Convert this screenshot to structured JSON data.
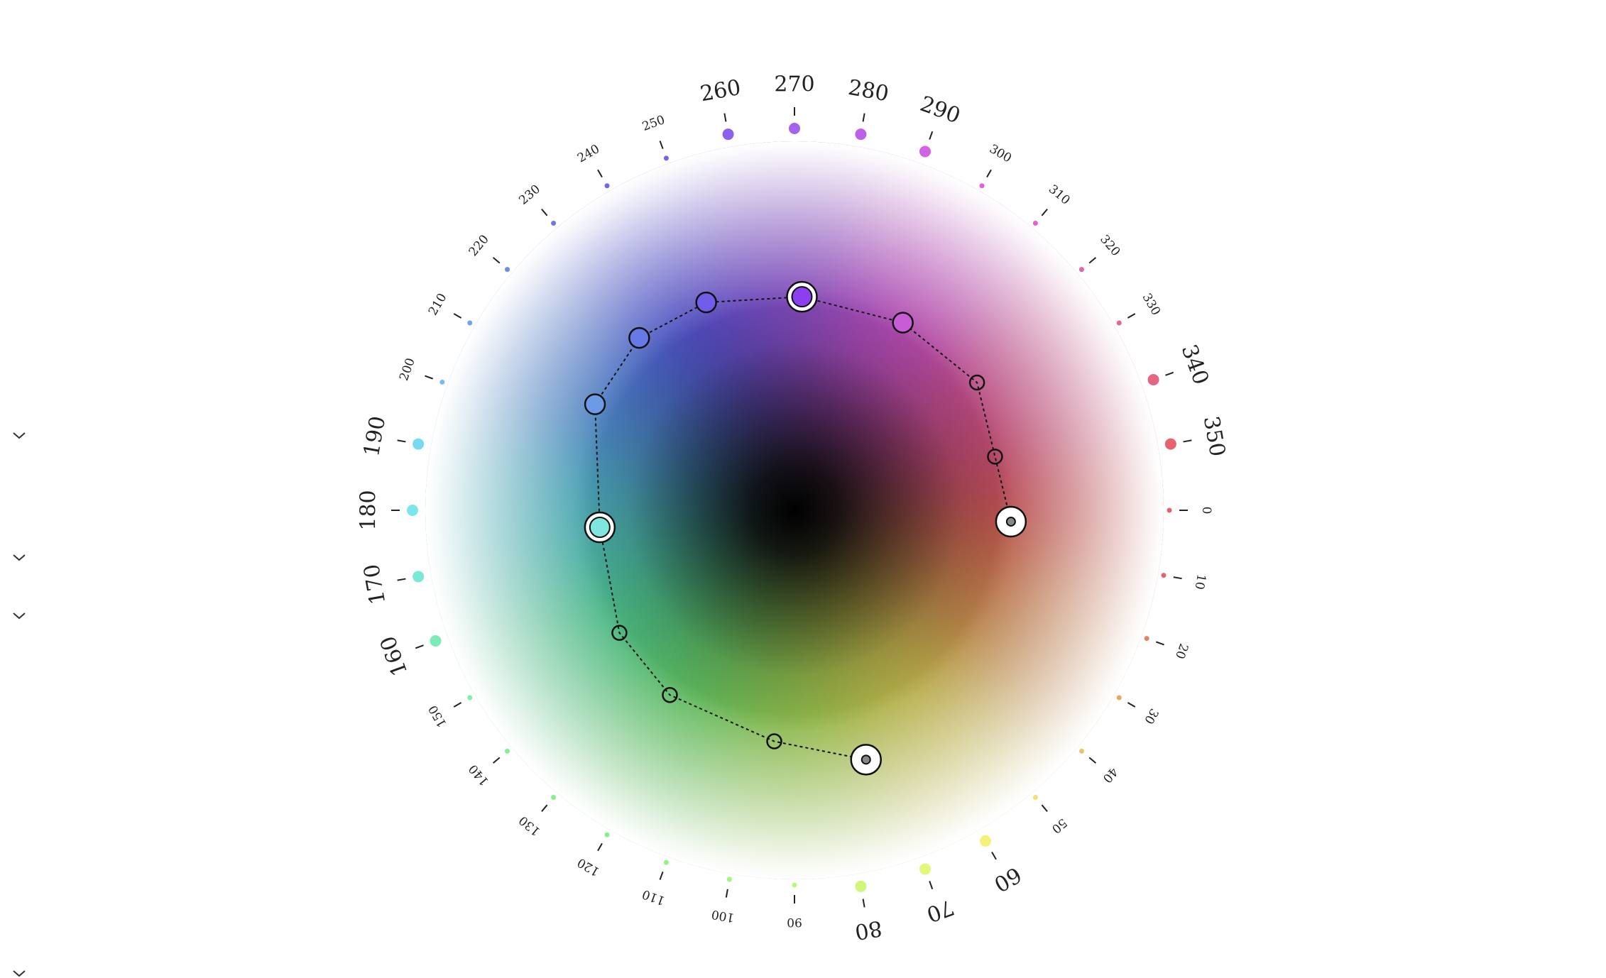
{
  "wheel": {
    "hue_ticks": [
      {
        "hue": 0,
        "label": "0",
        "color": "#e4606e",
        "major": false
      },
      {
        "hue": 10,
        "label": "10",
        "color": "#e5646a",
        "major": false
      },
      {
        "hue": 20,
        "label": "20",
        "color": "#e2855d",
        "major": false
      },
      {
        "hue": 30,
        "label": "30",
        "color": "#e9a862",
        "major": false
      },
      {
        "hue": 40,
        "label": "40",
        "color": "#eec268",
        "major": false
      },
      {
        "hue": 50,
        "label": "50",
        "color": "#f2e070",
        "major": false
      },
      {
        "hue": 60,
        "label": "60",
        "color": "#f4f27a",
        "major": true
      },
      {
        "hue": 70,
        "label": "70",
        "color": "#e3f77a",
        "major": true
      },
      {
        "hue": 80,
        "label": "80",
        "color": "#cff77a",
        "major": true
      },
      {
        "hue": 90,
        "label": "90",
        "color": "#b8f67c",
        "major": false
      },
      {
        "hue": 100,
        "label": "100",
        "color": "#a4f47e",
        "major": false
      },
      {
        "hue": 110,
        "label": "110",
        "color": "#96f282",
        "major": false
      },
      {
        "hue": 120,
        "label": "120",
        "color": "#8bf084",
        "major": false
      },
      {
        "hue": 130,
        "label": "130",
        "color": "#85ef8a",
        "major": false
      },
      {
        "hue": 140,
        "label": "140",
        "color": "#82ee95",
        "major": false
      },
      {
        "hue": 150,
        "label": "150",
        "color": "#80eea3",
        "major": false
      },
      {
        "hue": 160,
        "label": "160",
        "color": "#7debb8",
        "major": true
      },
      {
        "hue": 170,
        "label": "170",
        "color": "#7ae9d3",
        "major": true
      },
      {
        "hue": 180,
        "label": "180",
        "color": "#7ae8ea",
        "major": true
      },
      {
        "hue": 190,
        "label": "190",
        "color": "#7ad9f2",
        "major": true
      },
      {
        "hue": 200,
        "label": "200",
        "color": "#76bdee",
        "major": false
      },
      {
        "hue": 210,
        "label": "210",
        "color": "#72a2ea",
        "major": false
      },
      {
        "hue": 220,
        "label": "220",
        "color": "#6f8ce8",
        "major": false
      },
      {
        "hue": 230,
        "label": "230",
        "color": "#6f77e6",
        "major": false
      },
      {
        "hue": 240,
        "label": "240",
        "color": "#7168e6",
        "major": false
      },
      {
        "hue": 250,
        "label": "250",
        "color": "#7860e8",
        "major": false
      },
      {
        "hue": 260,
        "label": "260",
        "color": "#8b62ea",
        "major": true
      },
      {
        "hue": 270,
        "label": "270",
        "color": "#a463ec",
        "major": true
      },
      {
        "hue": 280,
        "label": "280",
        "color": "#bc62ea",
        "major": true
      },
      {
        "hue": 290,
        "label": "290",
        "color": "#d462e6",
        "major": true
      },
      {
        "hue": 300,
        "label": "300",
        "color": "#e062d6",
        "major": false
      },
      {
        "hue": 310,
        "label": "310",
        "color": "#e462c2",
        "major": false
      },
      {
        "hue": 320,
        "label": "320",
        "color": "#e662ad",
        "major": false
      },
      {
        "hue": 330,
        "label": "330",
        "color": "#e6639a",
        "major": false
      },
      {
        "hue": 340,
        "label": "340",
        "color": "#e66584",
        "major": true
      },
      {
        "hue": 350,
        "label": "350",
        "color": "#e6646f",
        "major": true
      }
    ],
    "palette_points": [
      {
        "hue": 3,
        "chroma": 0.71,
        "color": "#ffffff",
        "kind": "anchor"
      },
      {
        "hue": 345,
        "chroma": 0.68,
        "color": "#ffffff",
        "kind": "step"
      },
      {
        "hue": 325,
        "chroma": 0.73,
        "color": "#ffffff",
        "kind": "step"
      },
      {
        "hue": 300,
        "chroma": 0.71,
        "color": "#c85cd6",
        "kind": "swatch"
      },
      {
        "hue": 272,
        "chroma": 0.7,
        "color": "#8b3ff0",
        "kind": "selected"
      },
      {
        "hue": 247,
        "chroma": 0.74,
        "color": "#6f5ce8",
        "kind": "swatch"
      },
      {
        "hue": 228,
        "chroma": 0.76,
        "color": "#6679e6",
        "kind": "swatch"
      },
      {
        "hue": 208,
        "chroma": 0.74,
        "color": "#6c9ae8",
        "kind": "swatch"
      },
      {
        "hue": 175,
        "chroma": 0.64,
        "color": "#7ee6de",
        "kind": "selected"
      },
      {
        "hue": 145,
        "chroma": 0.7,
        "color": "#ffffff",
        "kind": "step"
      },
      {
        "hue": 124,
        "chroma": 0.73,
        "color": "#ffffff",
        "kind": "step"
      },
      {
        "hue": 95,
        "chroma": 0.76,
        "color": "#ffffff",
        "kind": "step"
      },
      {
        "hue": 74,
        "chroma": 0.85,
        "color": "#ffffff",
        "kind": "anchor"
      }
    ]
  },
  "sidebar": {
    "toggles": [
      {
        "icon": "chevron-down-icon"
      },
      {
        "icon": "chevron-down-icon"
      },
      {
        "icon": "chevron-down-icon"
      },
      {
        "icon": "chevron-down-icon"
      }
    ]
  }
}
